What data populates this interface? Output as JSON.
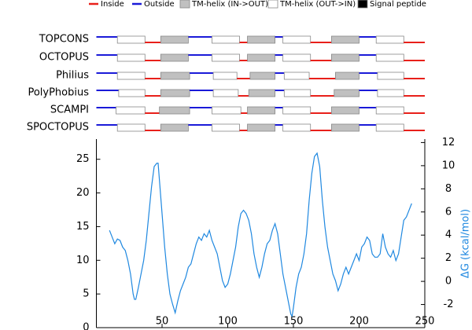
{
  "legend": [
    {
      "label": "Inside",
      "color": "#e8201a",
      "style": "line"
    },
    {
      "label": "Outside",
      "color": "#1a1ad8",
      "style": "line"
    },
    {
      "label": "TM-helix (IN->OUT)",
      "color": "#c0c0c0",
      "style": "box"
    },
    {
      "label": "TM-helix (OUT->IN)",
      "color": "#ffffff",
      "style": "box"
    },
    {
      "label": "Signal peptide",
      "color": "#000000",
      "style": "box"
    }
  ],
  "topology": {
    "rows": [
      {
        "method": "TOPCONS",
        "first": "outside",
        "helices": [
          [
            16,
            37
          ],
          [
            49,
            70
          ],
          [
            88,
            109
          ],
          [
            115,
            136
          ],
          [
            142,
            163
          ],
          [
            179,
            200
          ],
          [
            213,
            234
          ]
        ]
      },
      {
        "method": "OCTOPUS",
        "first": "outside",
        "helices": [
          [
            16,
            37
          ],
          [
            49,
            70
          ],
          [
            88,
            109
          ],
          [
            115,
            136
          ],
          [
            142,
            163
          ],
          [
            179,
            200
          ],
          [
            213,
            234
          ]
        ]
      },
      {
        "method": "Philius",
        "first": "outside",
        "helices": [
          [
            16,
            37
          ],
          [
            49,
            71
          ],
          [
            89,
            107
          ],
          [
            117,
            136
          ],
          [
            143,
            162
          ],
          [
            182,
            200
          ],
          [
            214,
            234
          ]
        ]
      },
      {
        "method": "PolyPhobius",
        "first": "outside",
        "helices": [
          [
            17,
            37
          ],
          [
            49,
            71
          ],
          [
            89,
            108
          ],
          [
            116,
            136
          ],
          [
            143,
            163
          ],
          [
            181,
            200
          ],
          [
            214,
            234
          ]
        ]
      },
      {
        "method": "SCAMPI",
        "first": "outside",
        "helices": [
          [
            15,
            37
          ],
          [
            48,
            71
          ],
          [
            88,
            110
          ],
          [
            115,
            136
          ],
          [
            142,
            163
          ],
          [
            179,
            200
          ],
          [
            213,
            234
          ]
        ]
      },
      {
        "method": "SPOCTOPUS",
        "first": "outside",
        "helices": [
          [
            16,
            37
          ],
          [
            49,
            70
          ],
          [
            88,
            109
          ],
          [
            115,
            136
          ],
          [
            142,
            163
          ],
          [
            179,
            200
          ],
          [
            213,
            234
          ]
        ]
      }
    ]
  },
  "chart_data": {
    "type": "line",
    "xlim": [
      0,
      250
    ],
    "xticks": [
      50,
      100,
      150,
      200,
      250
    ],
    "ylim": [
      0,
      28
    ],
    "yticks": [
      0,
      5,
      10,
      15,
      20,
      25
    ],
    "y2lim": [
      -4,
      12.3
    ],
    "y2ticks": [
      -2,
      0,
      2,
      4,
      6,
      8,
      10,
      12
    ],
    "y2label": "ΔG (kcal/mol)",
    "x": [
      10,
      12,
      14,
      16,
      18,
      20,
      22,
      24,
      26,
      28,
      29,
      30,
      32,
      34,
      36,
      38,
      40,
      42,
      44,
      46,
      47,
      48,
      50,
      52,
      54,
      56,
      58,
      60,
      62,
      64,
      66,
      68,
      70,
      72,
      74,
      76,
      78,
      80,
      82,
      84,
      86,
      88,
      90,
      92,
      94,
      96,
      98,
      100,
      102,
      104,
      106,
      108,
      110,
      112,
      114,
      116,
      118,
      120,
      122,
      124,
      126,
      128,
      130,
      132,
      134,
      136,
      138,
      140,
      142,
      144,
      146,
      148,
      149,
      150,
      152,
      154,
      156,
      158,
      160,
      162,
      164,
      166,
      168,
      170,
      172,
      174,
      176,
      178,
      180,
      182,
      184,
      186,
      188,
      190,
      192,
      194,
      196,
      198,
      200,
      202,
      204,
      206,
      208,
      210,
      212,
      214,
      216,
      218,
      220,
      222,
      224,
      226,
      228,
      230,
      232,
      234,
      236,
      238,
      240
    ],
    "series": [
      {
        "color": "#1f88e0",
        "axis": "y2",
        "values": [
          4.41,
          3.83,
          3.25,
          3.66,
          3.54,
          2.96,
          2.67,
          1.8,
          0.64,
          -1.1,
          -1.56,
          -1.56,
          -0.52,
          0.64,
          1.8,
          3.54,
          5.86,
          8.18,
          9.92,
          10.21,
          10.21,
          8.76,
          5.86,
          2.96,
          0.64,
          -1.1,
          -1.97,
          -2.72,
          -1.68,
          -0.81,
          -0.23,
          0.35,
          1.22,
          1.51,
          2.38,
          3.25,
          3.83,
          3.54,
          4.12,
          3.83,
          4.41,
          3.54,
          2.96,
          2.38,
          1.22,
          0.06,
          -0.52,
          -0.23,
          0.64,
          1.8,
          2.96,
          4.7,
          5.86,
          6.15,
          5.86,
          5.28,
          4.12,
          2.38,
          1.22,
          0.35,
          1.22,
          2.38,
          3.25,
          3.54,
          4.41,
          4.99,
          4.12,
          2.38,
          0.64,
          -0.52,
          -1.68,
          -2.84,
          -3.01,
          -2.26,
          -0.52,
          0.64,
          1.22,
          2.38,
          4.12,
          7.02,
          9.34,
          10.79,
          11.08,
          9.92,
          7.02,
          4.7,
          2.96,
          1.8,
          0.64,
          0.06,
          -0.81,
          -0.23,
          0.64,
          1.22,
          0.64,
          1.22,
          1.8,
          2.38,
          1.8,
          2.96,
          3.25,
          3.83,
          3.54,
          2.38,
          2.09,
          2.09,
          2.38,
          4.12,
          2.96,
          2.38,
          2.09,
          2.67,
          1.8,
          2.38,
          3.83,
          5.28,
          5.57,
          6.15,
          6.73
        ]
      }
    ]
  }
}
